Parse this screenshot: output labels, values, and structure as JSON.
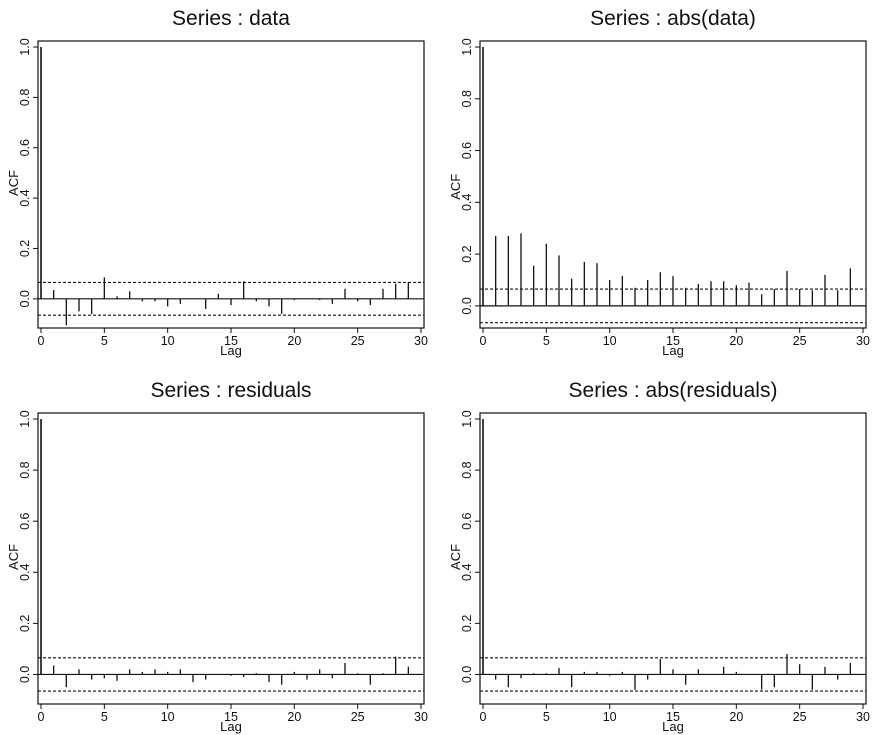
{
  "chart_data": [
    {
      "type": "bar",
      "title": "Series : data",
      "xlabel": "Lag",
      "ylabel": "ACF",
      "xlim": [
        0,
        30
      ],
      "ylim": [
        -0.1,
        1.0
      ],
      "xticks": [
        "0",
        "5",
        "10",
        "15",
        "20",
        "25",
        "30"
      ],
      "yticks": [
        "0.0",
        "0.2",
        "0.4",
        "0.6",
        "0.8",
        "1.0"
      ],
      "ci": [
        0.065,
        -0.065
      ],
      "lags": [
        0,
        1,
        2,
        3,
        4,
        5,
        6,
        7,
        8,
        9,
        10,
        11,
        12,
        13,
        14,
        15,
        16,
        17,
        18,
        19,
        20,
        21,
        22,
        23,
        24,
        25,
        26,
        27,
        28,
        29
      ],
      "values": [
        1.0,
        0.035,
        -0.105,
        -0.05,
        -0.06,
        0.085,
        0.01,
        0.03,
        -0.01,
        -0.01,
        -0.03,
        -0.02,
        0.0,
        -0.04,
        0.02,
        -0.025,
        0.07,
        -0.01,
        -0.03,
        -0.06,
        -0.005,
        0.0,
        -0.005,
        -0.02,
        0.04,
        -0.01,
        -0.025,
        0.04,
        0.06,
        0.065
      ]
    },
    {
      "type": "bar",
      "title": "Series : abs(data)",
      "xlabel": "Lag",
      "ylabel": "ACF",
      "xlim": [
        0,
        30
      ],
      "ylim": [
        -0.07,
        1.0
      ],
      "xticks": [
        "0",
        "5",
        "10",
        "15",
        "20",
        "25",
        "30"
      ],
      "yticks": [
        "0.0",
        "0.2",
        "0.4",
        "0.6",
        "0.8",
        "1.0"
      ],
      "ci": [
        0.065,
        -0.065
      ],
      "lags": [
        0,
        1,
        2,
        3,
        4,
        5,
        6,
        7,
        8,
        9,
        10,
        11,
        12,
        13,
        14,
        15,
        16,
        17,
        18,
        19,
        20,
        21,
        22,
        23,
        24,
        25,
        26,
        27,
        28,
        29
      ],
      "values": [
        1.0,
        0.27,
        0.27,
        0.28,
        0.155,
        0.24,
        0.195,
        0.105,
        0.17,
        0.165,
        0.1,
        0.115,
        0.07,
        0.1,
        0.13,
        0.115,
        0.07,
        0.085,
        0.095,
        0.095,
        0.08,
        0.09,
        0.045,
        0.065,
        0.135,
        0.065,
        0.06,
        0.12,
        0.06,
        0.145
      ]
    },
    {
      "type": "bar",
      "title": "Series : residuals",
      "xlabel": "Lag",
      "ylabel": "ACF",
      "xlim": [
        0,
        30
      ],
      "ylim": [
        -0.1,
        1.0
      ],
      "xticks": [
        "0",
        "5",
        "10",
        "15",
        "20",
        "25",
        "30"
      ],
      "yticks": [
        "0.0",
        "0.2",
        "0.4",
        "0.6",
        "0.8",
        "1.0"
      ],
      "ci": [
        0.065,
        -0.065
      ],
      "lags": [
        0,
        1,
        2,
        3,
        4,
        5,
        6,
        7,
        8,
        9,
        10,
        11,
        12,
        13,
        14,
        15,
        16,
        17,
        18,
        19,
        20,
        21,
        22,
        23,
        24,
        25,
        26,
        27,
        28,
        29
      ],
      "values": [
        1.0,
        0.035,
        -0.05,
        0.02,
        -0.02,
        -0.015,
        -0.025,
        0.02,
        0.01,
        0.02,
        0.01,
        0.02,
        -0.03,
        -0.02,
        0.0,
        -0.005,
        -0.01,
        0.005,
        -0.03,
        -0.04,
        0.01,
        -0.02,
        0.02,
        -0.015,
        0.045,
        0.005,
        -0.04,
        0.005,
        0.07,
        0.03
      ]
    },
    {
      "type": "bar",
      "title": "Series : abs(residuals)",
      "xlabel": "Lag",
      "ylabel": "ACF",
      "xlim": [
        0,
        30
      ],
      "ylim": [
        -0.1,
        1.0
      ],
      "xticks": [
        "0",
        "5",
        "10",
        "15",
        "20",
        "25",
        "30"
      ],
      "yticks": [
        "0.0",
        "0.2",
        "0.4",
        "0.6",
        "0.8",
        "1.0"
      ],
      "ci": [
        0.065,
        -0.065
      ],
      "lags": [
        0,
        1,
        2,
        3,
        4,
        5,
        6,
        7,
        8,
        9,
        10,
        11,
        12,
        13,
        14,
        15,
        16,
        17,
        18,
        19,
        20,
        21,
        22,
        23,
        24,
        25,
        26,
        27,
        28,
        29
      ],
      "values": [
        1.0,
        -0.02,
        -0.05,
        -0.015,
        0.005,
        0.005,
        0.025,
        -0.05,
        0.01,
        0.01,
        -0.005,
        0.01,
        -0.06,
        -0.02,
        0.06,
        0.02,
        -0.04,
        0.02,
        0.0,
        0.03,
        0.01,
        0.0,
        -0.06,
        -0.05,
        0.08,
        0.04,
        -0.06,
        0.03,
        -0.02,
        0.045
      ]
    }
  ]
}
